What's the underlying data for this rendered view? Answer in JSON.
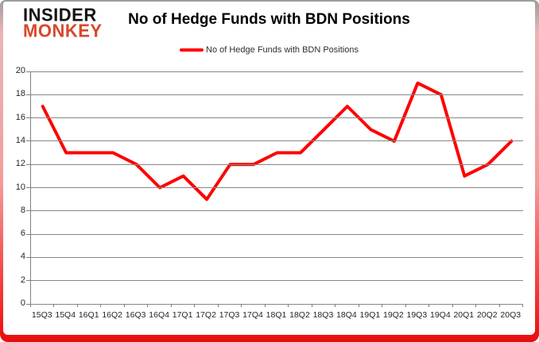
{
  "logo": {
    "line1": "INSIDER",
    "line2": "MONKEY"
  },
  "header": {
    "title": "No of Hedge Funds with BDN Positions"
  },
  "legend": {
    "label": "No of Hedge Funds with BDN Positions"
  },
  "chart_data": {
    "type": "line",
    "title": "No of Hedge Funds with BDN Positions",
    "categories": [
      "15Q3",
      "15Q4",
      "16Q1",
      "16Q2",
      "16Q3",
      "16Q4",
      "17Q1",
      "17Q2",
      "17Q3",
      "17Q4",
      "18Q1",
      "18Q2",
      "18Q3",
      "18Q4",
      "19Q1",
      "19Q2",
      "19Q3",
      "19Q4",
      "20Q1",
      "20Q2",
      "20Q3"
    ],
    "series": [
      {
        "name": "No of Hedge Funds with BDN Positions",
        "values": [
          17,
          13,
          13,
          13,
          12,
          10,
          11,
          9,
          12,
          12,
          13,
          13,
          15,
          17,
          15,
          14,
          19,
          18,
          11,
          12,
          14
        ]
      }
    ],
    "xlabel": "",
    "ylabel": "",
    "ylim": [
      0,
      20
    ],
    "yticks": [
      0,
      2,
      4,
      6,
      8,
      10,
      12,
      14,
      16,
      18,
      20
    ],
    "grid": true,
    "legend_position": "top-center",
    "line_color": "#ff0000"
  },
  "colors": {
    "series_red": "#ff0000",
    "gridline_gray": "#878787",
    "logo_black": "#141414",
    "logo_red": "#d8472b",
    "frame_bottom_red": "#e60d0d",
    "axis_text": "#262626"
  }
}
